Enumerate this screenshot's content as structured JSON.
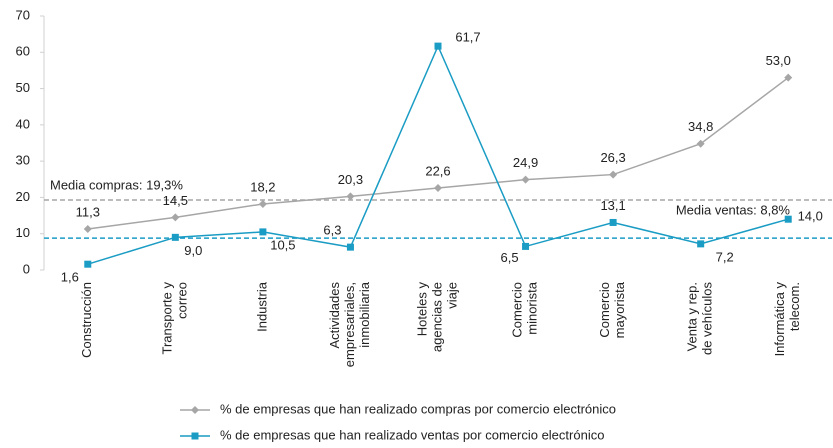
{
  "chart_data": {
    "type": "line",
    "categories": [
      [
        "Construcción"
      ],
      [
        "Transporte y",
        "correo"
      ],
      [
        "Industria"
      ],
      [
        "Actividades",
        "empresariales,",
        "inmobiliaria"
      ],
      [
        "Hoteles y",
        "agencias de",
        "viaje"
      ],
      [
        "Comercio",
        "minorista"
      ],
      [
        "Comercio",
        "mayorista"
      ],
      [
        "Venta y rep.",
        "de vehículos"
      ],
      [
        "Informática y",
        "telecom."
      ]
    ],
    "series": [
      {
        "name": "% de empresas que han realizado compras por comercio electrónico",
        "color": "#a6a6a6",
        "marker": "diamond",
        "values": [
          11.3,
          14.5,
          18.2,
          20.3,
          22.6,
          24.9,
          26.3,
          34.8,
          53.0
        ],
        "value_labels": [
          "11,3",
          "14,5",
          "18,2",
          "20,3",
          "22,6",
          "24,9",
          "26,3",
          "34,8",
          "53,0"
        ]
      },
      {
        "name": "% de empresas que han realizado ventas por comercio electrónico",
        "color": "#1a9cc4",
        "marker": "square",
        "values": [
          1.6,
          9.0,
          10.5,
          6.3,
          61.7,
          6.5,
          13.1,
          7.2,
          14.0
        ],
        "value_labels": [
          "1,6",
          "9,0",
          "10,5",
          "6,3",
          "61,7",
          "6,5",
          "13,1",
          "7,2",
          "14,0"
        ]
      }
    ],
    "reference_lines": [
      {
        "label": "Media compras: 19,3%",
        "value": 19.3,
        "color": "#a6a6a6"
      },
      {
        "label": "Media ventas: 8,8%",
        "value": 8.8,
        "color": "#1a9cc4"
      }
    ],
    "ylim": [
      0,
      70
    ],
    "yticks": [
      0,
      10,
      20,
      30,
      40,
      50,
      60,
      70
    ],
    "grid": false,
    "legend": "bottom"
  }
}
